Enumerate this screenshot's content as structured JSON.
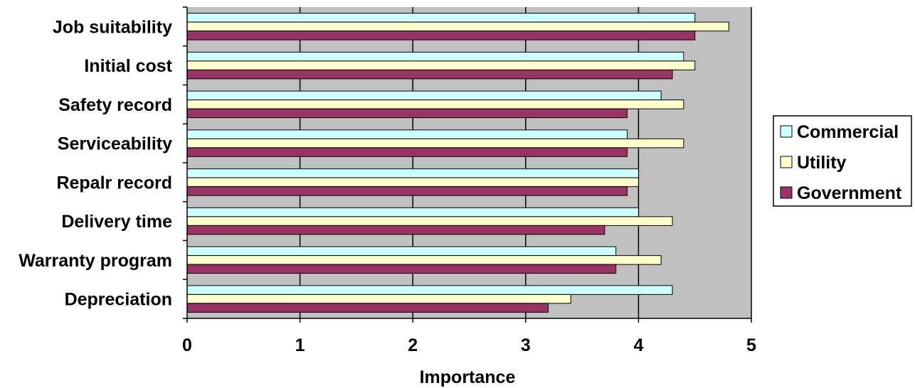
{
  "chart_data": {
    "type": "bar",
    "orientation": "horizontal",
    "title": "",
    "xlabel": "Importance",
    "ylabel": "",
    "xlim": [
      0,
      5
    ],
    "x_ticks": [
      "0",
      "1",
      "2",
      "3",
      "4",
      "5"
    ],
    "grid": "vertical major gridlines",
    "plot_background": "#c0c0c0",
    "legend_position": "right",
    "categories": [
      "Job suitability",
      "Initial cost",
      "Safety record",
      "Serviceability",
      "Repalr record",
      "Delivery time",
      "Warranty program",
      "Depreciation"
    ],
    "series": [
      {
        "name": "Commercial",
        "color": "#ccffff",
        "values": [
          4.5,
          4.4,
          4.2,
          3.9,
          4.0,
          4.0,
          3.8,
          4.3
        ]
      },
      {
        "name": "Utility",
        "color": "#ffffcc",
        "values": [
          4.8,
          4.5,
          4.4,
          4.4,
          4.0,
          4.3,
          4.2,
          3.4
        ]
      },
      {
        "name": "Government",
        "color": "#993366",
        "values": [
          4.5,
          4.3,
          3.9,
          3.9,
          3.9,
          3.7,
          3.8,
          3.2
        ]
      }
    ]
  }
}
